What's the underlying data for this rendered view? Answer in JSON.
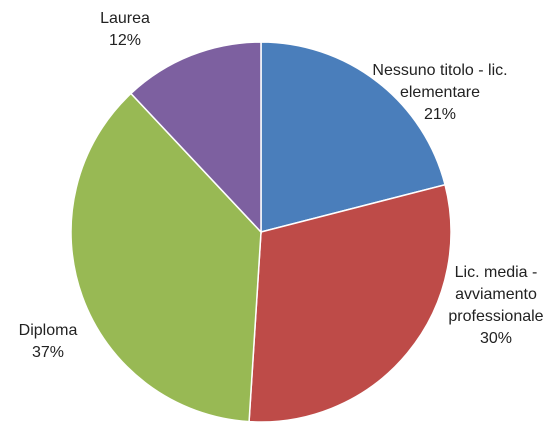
{
  "chart_data": {
    "type": "pie",
    "categories": [
      "Nessuno titolo - lic. elementare",
      "Lic. media - avviamento professionale",
      "Diploma",
      "Laurea"
    ],
    "values": [
      21,
      30,
      37,
      12
    ],
    "value_labels": [
      "21%",
      "30%",
      "37%",
      "12%"
    ],
    "colors": [
      "#4a7ebb",
      "#be4b48",
      "#98b954",
      "#7d60a0"
    ]
  }
}
